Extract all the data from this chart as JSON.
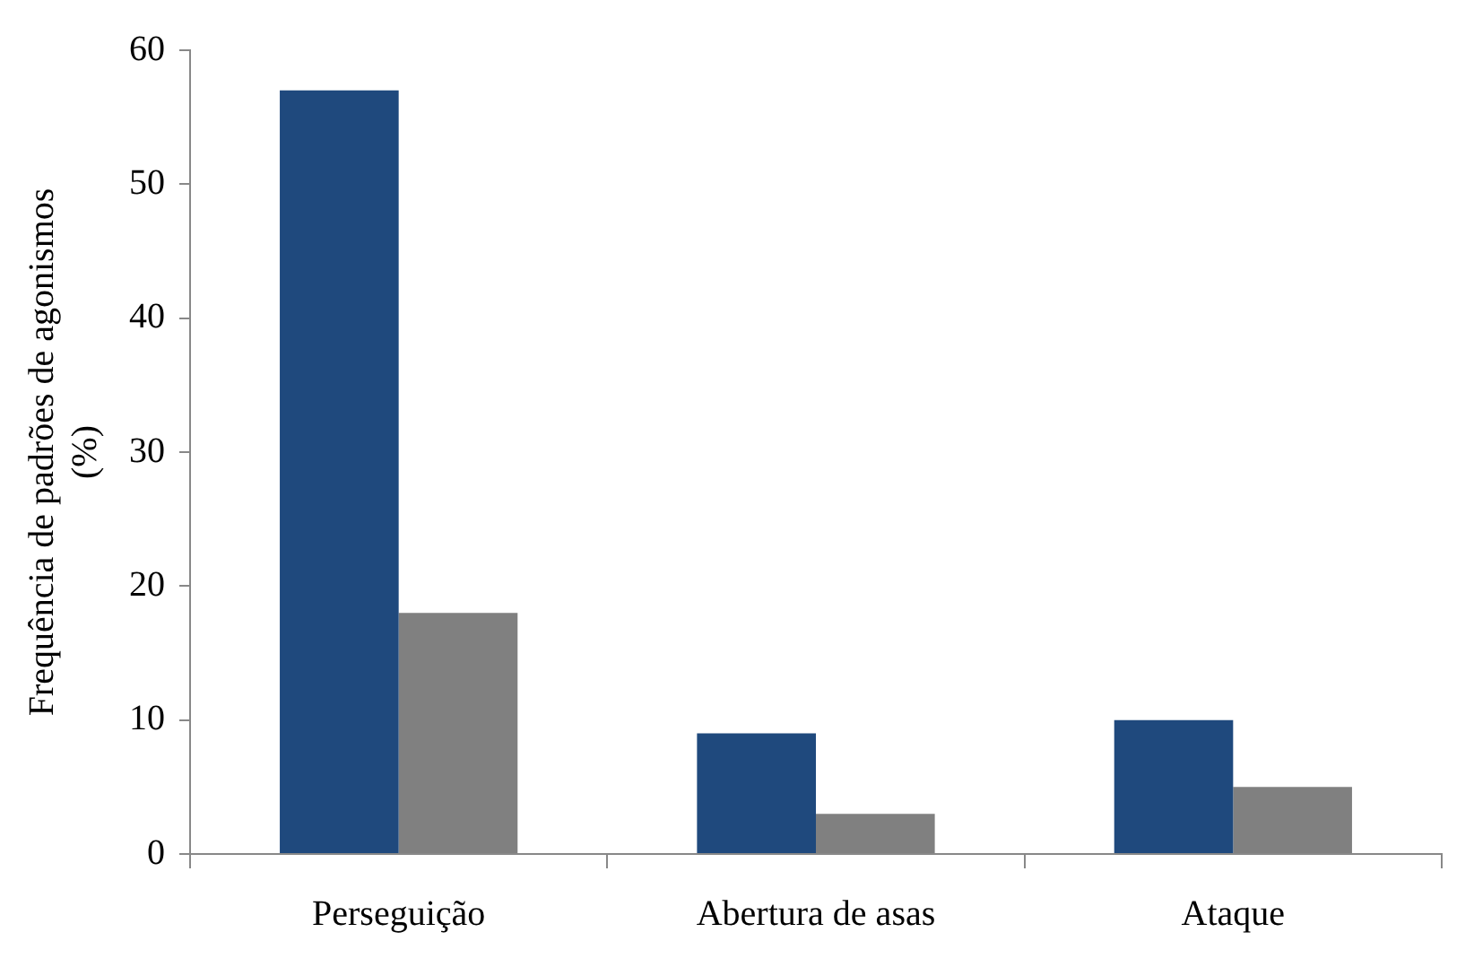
{
  "chart_data": {
    "type": "bar",
    "ylabel": "Frequência de padrões de agonismos (%)",
    "categories": [
      "Perseguição",
      "Abertura de asas",
      "Ataque"
    ],
    "series": [
      {
        "color": "#1f497d",
        "values": [
          57,
          9,
          10
        ]
      },
      {
        "color": "#808080",
        "values": [
          18,
          3,
          5
        ]
      }
    ],
    "ylim": [
      0,
      60
    ],
    "yticks": [
      0,
      10,
      20,
      30,
      40,
      50,
      60
    ],
    "grid": false,
    "legend": false
  }
}
